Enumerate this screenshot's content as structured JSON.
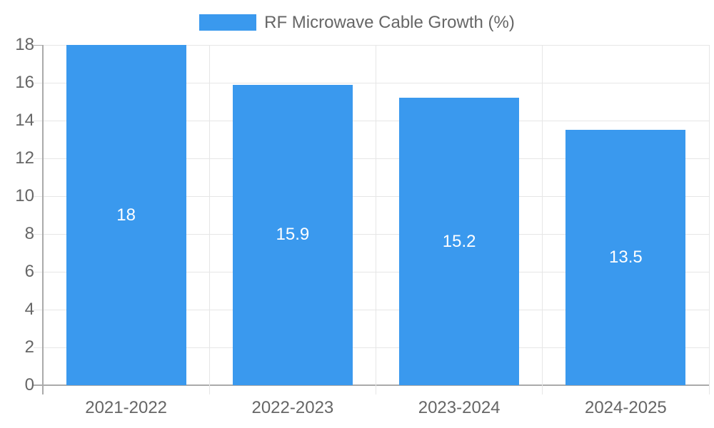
{
  "legend": {
    "label": "RF Microwave Cable Growth (%)"
  },
  "colors": {
    "bar": "#3a99ee",
    "grid": "#e6e6e6",
    "axis_line": "#aaaaaa",
    "tick_text": "#666666",
    "value_label": "#ffffff",
    "background": "#ffffff"
  },
  "chart_data": {
    "type": "bar",
    "title": "",
    "xlabel": "",
    "ylabel": "",
    "categories": [
      "2021-2022",
      "2022-2023",
      "2023-2024",
      "2024-2025"
    ],
    "values": [
      18,
      15.9,
      15.2,
      13.5
    ],
    "value_labels": [
      "18",
      "15.9",
      "15.2",
      "13.5"
    ],
    "series": [
      {
        "name": "RF Microwave Cable Growth (%)",
        "values": [
          18,
          15.9,
          15.2,
          13.5
        ]
      }
    ],
    "ylim": [
      0,
      18
    ],
    "yticks": [
      0,
      2,
      4,
      6,
      8,
      10,
      12,
      14,
      16,
      18
    ],
    "grid": true,
    "legend_position": "top",
    "bar_color": "#3a99ee"
  }
}
